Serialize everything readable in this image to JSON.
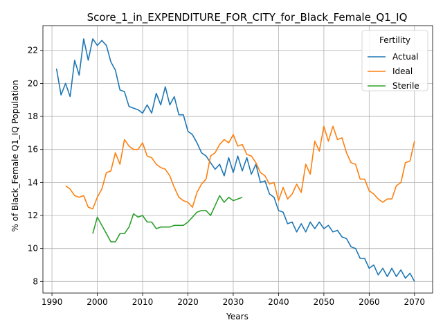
{
  "chart_data": {
    "type": "line",
    "title": "Score_1_in_EXPENDITURE_FOR_CITY_for_Black_Female_Q1_IQ",
    "xlabel": "Years",
    "ylabel": "% of Black_Female Q1_IQ Population",
    "xlim": [
      1988,
      2074
    ],
    "ylim": [
      7.3,
      23.5
    ],
    "xticks": [
      1990,
      2000,
      2010,
      2020,
      2030,
      2040,
      2050,
      2060,
      2070
    ],
    "yticks": [
      8,
      10,
      12,
      14,
      16,
      18,
      20,
      22
    ],
    "grid": true,
    "legend": {
      "title": "Fertility",
      "position": "top-right"
    },
    "series": [
      {
        "name": "Actual",
        "color": "#1f77b4",
        "x": [
          1991,
          1992,
          1993,
          1994,
          1995,
          1996,
          1997,
          1998,
          1999,
          2000,
          2001,
          2002,
          2003,
          2004,
          2005,
          2006,
          2007,
          2008,
          2009,
          2010,
          2011,
          2012,
          2013,
          2014,
          2015,
          2016,
          2017,
          2018,
          2019,
          2020,
          2021,
          2022,
          2023,
          2024,
          2025,
          2026,
          2027,
          2028,
          2029,
          2030,
          2031,
          2032,
          2033,
          2034,
          2035,
          2036,
          2037,
          2038,
          2039,
          2040,
          2041,
          2042,
          2043,
          2044,
          2045,
          2046,
          2047,
          2048,
          2049,
          2050,
          2051,
          2052,
          2053,
          2054,
          2055,
          2056,
          2057,
          2058,
          2059,
          2060,
          2061,
          2062,
          2063,
          2064,
          2065,
          2066,
          2067,
          2068,
          2069,
          2070
        ],
        "values": [
          20.9,
          19.3,
          20.0,
          19.2,
          21.4,
          20.5,
          22.7,
          21.4,
          22.7,
          22.3,
          22.6,
          22.3,
          21.3,
          20.8,
          19.6,
          19.5,
          18.6,
          18.5,
          18.4,
          18.2,
          18.7,
          18.2,
          19.4,
          18.7,
          19.8,
          18.7,
          19.2,
          18.1,
          18.1,
          17.1,
          16.9,
          16.4,
          15.8,
          15.6,
          15.2,
          14.8,
          15.1,
          14.4,
          15.5,
          14.6,
          15.6,
          14.7,
          15.5,
          14.5,
          15.1,
          14.0,
          14.1,
          13.3,
          13.1,
          12.3,
          12.2,
          11.5,
          11.6,
          11.0,
          11.5,
          11.0,
          11.6,
          11.2,
          11.6,
          11.2,
          11.4,
          11.0,
          11.1,
          10.7,
          10.6,
          10.1,
          10.0,
          9.4,
          9.4,
          8.8,
          9.0,
          8.4,
          8.8,
          8.3,
          8.8,
          8.3,
          8.7,
          8.2,
          8.5,
          8.0
        ]
      },
      {
        "name": "Ideal",
        "color": "#ff7f0e",
        "x": [
          1993,
          1994,
          1995,
          1996,
          1997,
          1998,
          1999,
          2000,
          2001,
          2002,
          2003,
          2004,
          2005,
          2006,
          2007,
          2008,
          2009,
          2010,
          2011,
          2012,
          2013,
          2014,
          2015,
          2016,
          2017,
          2018,
          2019,
          2020,
          2021,
          2022,
          2023,
          2024,
          2025,
          2026,
          2027,
          2028,
          2029,
          2030,
          2031,
          2032,
          2033,
          2034,
          2035,
          2036,
          2037,
          2038,
          2039,
          2040,
          2041,
          2042,
          2043,
          2044,
          2045,
          2046,
          2047,
          2048,
          2049,
          2050,
          2051,
          2052,
          2053,
          2054,
          2055,
          2056,
          2057,
          2058,
          2059,
          2060,
          2061,
          2062,
          2063,
          2064,
          2065,
          2066,
          2067,
          2068,
          2069,
          2070
        ],
        "values": [
          13.8,
          13.6,
          13.2,
          13.1,
          13.2,
          12.5,
          12.4,
          13.1,
          13.6,
          14.6,
          14.7,
          15.8,
          15.1,
          16.6,
          16.2,
          16.0,
          16.0,
          16.4,
          15.6,
          15.5,
          15.1,
          14.9,
          14.8,
          14.4,
          13.7,
          13.1,
          12.9,
          12.8,
          12.5,
          13.4,
          13.9,
          14.2,
          15.6,
          15.8,
          16.3,
          16.6,
          16.4,
          16.9,
          16.2,
          16.3,
          15.7,
          15.6,
          15.2,
          14.6,
          14.4,
          13.9,
          14.0,
          12.9,
          13.7,
          13.0,
          13.3,
          13.9,
          13.4,
          15.1,
          14.5,
          16.5,
          15.9,
          17.4,
          16.5,
          17.4,
          16.6,
          16.7,
          15.8,
          15.2,
          15.1,
          14.2,
          14.2,
          13.5,
          13.3,
          13.0,
          12.8,
          13.0,
          13.0,
          13.8,
          14.0,
          15.2,
          15.3,
          16.5
        ]
      },
      {
        "name": "Sterile",
        "color": "#2ca02c",
        "x": [
          1999,
          2000,
          2001,
          2002,
          2003,
          2004,
          2005,
          2006,
          2007,
          2008,
          2009,
          2010,
          2011,
          2012,
          2013,
          2014,
          2015,
          2016,
          2017,
          2018,
          2019,
          2020,
          2021,
          2022,
          2023,
          2024,
          2025,
          2026,
          2027,
          2028,
          2029,
          2030,
          2031,
          2032
        ],
        "values": [
          10.9,
          11.9,
          11.4,
          10.9,
          10.4,
          10.4,
          10.9,
          10.9,
          11.3,
          12.1,
          11.9,
          12.0,
          11.6,
          11.6,
          11.2,
          11.3,
          11.3,
          11.3,
          11.4,
          11.4,
          11.4,
          11.6,
          11.9,
          12.2,
          12.3,
          12.3,
          12.0,
          12.6,
          13.2,
          12.8,
          13.1,
          12.9,
          13.0,
          13.1
        ]
      }
    ]
  }
}
